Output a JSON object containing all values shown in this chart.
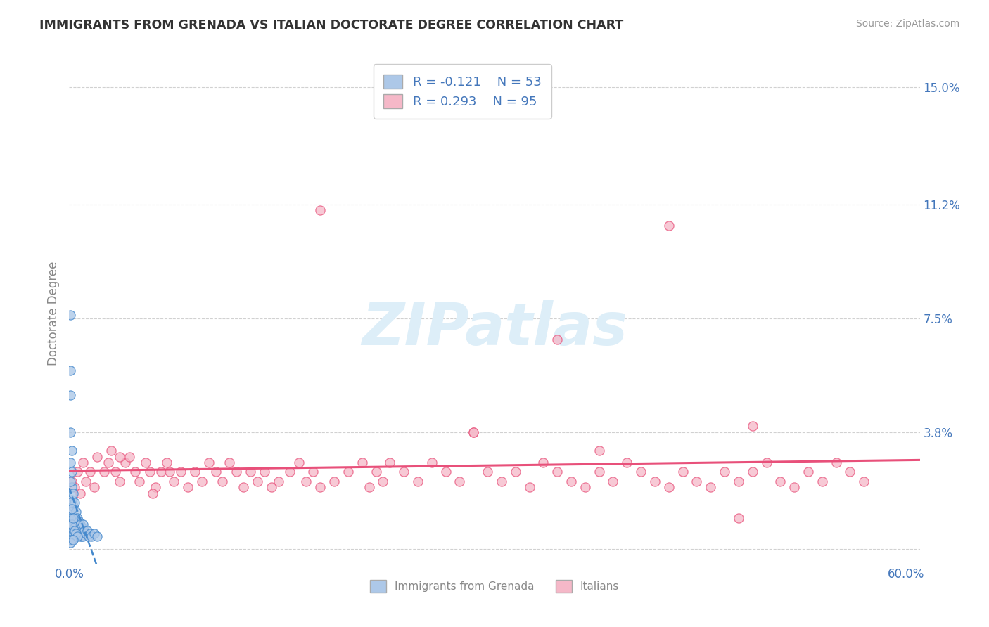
{
  "title": "IMMIGRANTS FROM GRENADA VS ITALIAN DOCTORATE DEGREE CORRELATION CHART",
  "source_text": "Source: ZipAtlas.com",
  "ylabel": "Doctorate Degree",
  "watermark": "ZIPatlas",
  "legend_label1": "Immigrants from Grenada",
  "legend_label2": "Italians",
  "R1": -0.121,
  "N1": 53,
  "R2": 0.293,
  "N2": 95,
  "color1": "#adc8e8",
  "color2": "#f5b8c8",
  "line_color1": "#4488cc",
  "line_color2": "#e8507a",
  "tick_color": "#4477bb",
  "axis_label_color": "#888888",
  "title_color": "#333333",
  "source_color": "#999999",
  "background_color": "#ffffff",
  "watermark_color": "#ddeef8",
  "grid_color": "#cccccc",
  "xlim": [
    0.0,
    0.61
  ],
  "ylim": [
    -0.005,
    0.158
  ],
  "ytick_vals": [
    0.0,
    0.038,
    0.075,
    0.112,
    0.15
  ],
  "ytick_labels": [
    "",
    "3.8%",
    "7.5%",
    "11.2%",
    "15.0%"
  ],
  "xtick_vals": [
    0.0,
    0.6
  ],
  "xtick_labels": [
    "0.0%",
    "60.0%"
  ],
  "scatter1_x": [
    0.001,
    0.001,
    0.001,
    0.001,
    0.001,
    0.002,
    0.002,
    0.002,
    0.002,
    0.002,
    0.002,
    0.003,
    0.003,
    0.003,
    0.003,
    0.004,
    0.004,
    0.004,
    0.005,
    0.005,
    0.005,
    0.006,
    0.006,
    0.007,
    0.007,
    0.008,
    0.008,
    0.009,
    0.009,
    0.01,
    0.01,
    0.011,
    0.012,
    0.013,
    0.014,
    0.015,
    0.016,
    0.018,
    0.02,
    0.001,
    0.001,
    0.001,
    0.002,
    0.002,
    0.003,
    0.003,
    0.004,
    0.005,
    0.006,
    0.001,
    0.002,
    0.001,
    0.003
  ],
  "scatter1_y": [
    0.076,
    0.058,
    0.05,
    0.038,
    0.028,
    0.032,
    0.025,
    0.02,
    0.016,
    0.012,
    0.008,
    0.018,
    0.014,
    0.01,
    0.006,
    0.015,
    0.01,
    0.007,
    0.012,
    0.008,
    0.005,
    0.01,
    0.006,
    0.009,
    0.005,
    0.008,
    0.004,
    0.007,
    0.004,
    0.008,
    0.004,
    0.006,
    0.005,
    0.006,
    0.004,
    0.005,
    0.004,
    0.005,
    0.004,
    0.022,
    0.015,
    0.01,
    0.013,
    0.008,
    0.01,
    0.005,
    0.006,
    0.005,
    0.004,
    0.003,
    0.003,
    0.002,
    0.003
  ],
  "scatter2_x": [
    0.002,
    0.004,
    0.006,
    0.008,
    0.01,
    0.012,
    0.015,
    0.018,
    0.02,
    0.025,
    0.028,
    0.03,
    0.033,
    0.036,
    0.04,
    0.043,
    0.047,
    0.05,
    0.055,
    0.058,
    0.062,
    0.066,
    0.07,
    0.075,
    0.08,
    0.085,
    0.09,
    0.095,
    0.1,
    0.105,
    0.11,
    0.115,
    0.12,
    0.125,
    0.13,
    0.135,
    0.14,
    0.145,
    0.15,
    0.158,
    0.165,
    0.17,
    0.175,
    0.18,
    0.19,
    0.2,
    0.21,
    0.215,
    0.22,
    0.225,
    0.23,
    0.24,
    0.25,
    0.26,
    0.27,
    0.28,
    0.29,
    0.3,
    0.31,
    0.32,
    0.33,
    0.34,
    0.35,
    0.36,
    0.37,
    0.38,
    0.39,
    0.4,
    0.41,
    0.42,
    0.43,
    0.44,
    0.45,
    0.46,
    0.47,
    0.48,
    0.49,
    0.5,
    0.51,
    0.52,
    0.53,
    0.54,
    0.55,
    0.56,
    0.57,
    0.036,
    0.072,
    0.29,
    0.38,
    0.49,
    0.18,
    0.35,
    0.43,
    0.06,
    0.48
  ],
  "scatter2_y": [
    0.022,
    0.02,
    0.025,
    0.018,
    0.028,
    0.022,
    0.025,
    0.02,
    0.03,
    0.025,
    0.028,
    0.032,
    0.025,
    0.022,
    0.028,
    0.03,
    0.025,
    0.022,
    0.028,
    0.025,
    0.02,
    0.025,
    0.028,
    0.022,
    0.025,
    0.02,
    0.025,
    0.022,
    0.028,
    0.025,
    0.022,
    0.028,
    0.025,
    0.02,
    0.025,
    0.022,
    0.025,
    0.02,
    0.022,
    0.025,
    0.028,
    0.022,
    0.025,
    0.02,
    0.022,
    0.025,
    0.028,
    0.02,
    0.025,
    0.022,
    0.028,
    0.025,
    0.022,
    0.028,
    0.025,
    0.022,
    0.038,
    0.025,
    0.022,
    0.025,
    0.02,
    0.028,
    0.025,
    0.022,
    0.02,
    0.025,
    0.022,
    0.028,
    0.025,
    0.022,
    0.02,
    0.025,
    0.022,
    0.02,
    0.025,
    0.022,
    0.025,
    0.028,
    0.022,
    0.02,
    0.025,
    0.022,
    0.028,
    0.025,
    0.022,
    0.03,
    0.025,
    0.038,
    0.032,
    0.04,
    0.11,
    0.068,
    0.105,
    0.018,
    0.01
  ]
}
